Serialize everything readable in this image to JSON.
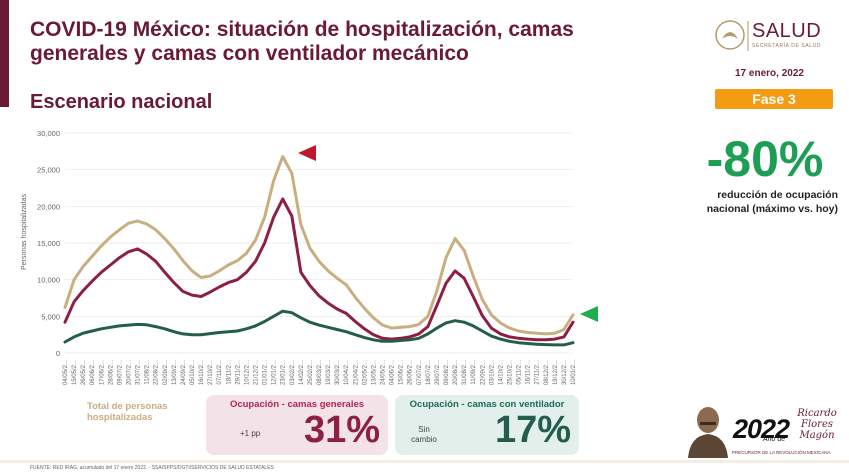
{
  "header": {
    "title": "COVID-19 México: situación de hospitalización, camas generales y camas con ventilador mecánico",
    "subtitle": "Escenario nacional"
  },
  "brand": {
    "logo_text": "SALUD",
    "logo_subtext": "SECRETARÍA DE SALUD",
    "date": "17 enero, 2022",
    "phase": "Fase 3",
    "accent_color": "#6a1a33",
    "phase_color": "#f39c12"
  },
  "kpi": {
    "value": "-80%",
    "description": "reducción de ocupación nacional (máximo vs. hoy)",
    "color": "#1e9e55"
  },
  "cards": {
    "total": {
      "label": "Total de personas hospitalizadas",
      "color": "#c9ae80"
    },
    "generales": {
      "label": "Ocupación - camas generales",
      "change": "+1 pp",
      "value": "31%",
      "color": "#8d1f45"
    },
    "ventilador": {
      "label": "Ocupación - camas con ventilador",
      "change": "Sin cambio",
      "value": "17%",
      "color": "#235d4d"
    }
  },
  "year_badge": {
    "year": "2022",
    "year_sub": "Año de",
    "signature": "Ricardo Flores Magón",
    "tagline": "PRECURSOR DE LA REVOLUCIÓN MEXICANA"
  },
  "footer": "FUENTE: RED IRAG, acumulado del 17 enero 2022. - SSA/SPPS/DGTI/SERVICIOS DE SALUD ESTATALES",
  "chart_data": {
    "type": "line",
    "ylabel": "Personas hospitalizadas",
    "ylim": [
      0,
      30000
    ],
    "yticks": [
      "0",
      "5,000",
      "10,000",
      "15,000",
      "20,000",
      "25,000",
      "30,000"
    ],
    "x_tick_labels": [
      "04/05/2…",
      "15/05/2…",
      "26/05/2…",
      "06/06/2…",
      "17/06/2…",
      "28/06/2…",
      "09/07/2…",
      "20/07/2…",
      "31/07/2…",
      "11/08/2…",
      "22/08/2…",
      "02/09/2…",
      "13/09/2…",
      "24/09/2…",
      "05/10/2…",
      "16/10/2…",
      "27/10/2…",
      "07/11/2…",
      "18/11/2…",
      "29/11/2…",
      "10/12/2…",
      "21/12/2…",
      "01/01/2…",
      "12/01/2…",
      "23/01/2…",
      "03/02/2…",
      "14/02/2…",
      "25/02/2…",
      "08/03/2…",
      "19/03/2…",
      "30/03/2…",
      "10/04/2…",
      "21/04/2…",
      "02/05/2…",
      "13/05/2…",
      "24/05/2…",
      "04/06/2…",
      "15/06/2…",
      "26/06/2…",
      "07/07/2…",
      "18/07/2…",
      "29/07/2…",
      "09/08/2…",
      "20/08/2…",
      "31/08/2…",
      "11/09/2…",
      "22/09/2…",
      "03/10/2…",
      "14/10/2…",
      "25/10/2…",
      "05/11/2…",
      "16/11/2…",
      "27/11/2…",
      "08/12/2…",
      "19/12/2…",
      "30/12/2…",
      "10/01/2…"
    ],
    "x": [
      0,
      1,
      2,
      3,
      4,
      5,
      6,
      7,
      8,
      9,
      10,
      11,
      12,
      13,
      14,
      15,
      16,
      17,
      18,
      19,
      20,
      21,
      22,
      23,
      24,
      25,
      26,
      27,
      28,
      29,
      30,
      31,
      32,
      33,
      34,
      35,
      36,
      37,
      38,
      39,
      40,
      41,
      42,
      43,
      44,
      45,
      46,
      47,
      48,
      49,
      50,
      51,
      52,
      53,
      54,
      55,
      56
    ],
    "series": [
      {
        "name": "Total de personas hospitalizadas",
        "color": "#c9ae80",
        "values": [
          6200,
          10000,
          11800,
          13200,
          14600,
          15800,
          16800,
          17700,
          18000,
          17600,
          16800,
          15600,
          14200,
          12600,
          11200,
          10300,
          10500,
          11200,
          12000,
          12600,
          13600,
          15400,
          18500,
          23500,
          26800,
          24500,
          17500,
          14300,
          12500,
          11200,
          10200,
          9300,
          7600,
          6100,
          4800,
          3800,
          3400,
          3500,
          3600,
          3900,
          5000,
          8500,
          13000,
          15600,
          14000,
          10500,
          7300,
          5200,
          4100,
          3400,
          3000,
          2800,
          2700,
          2600,
          2700,
          3200,
          5200
        ]
      },
      {
        "name": "Camas generales",
        "color": "#8d1f45",
        "values": [
          4200,
          7000,
          8500,
          9800,
          11000,
          12000,
          13000,
          13800,
          14200,
          13500,
          12500,
          11000,
          9600,
          8400,
          7900,
          7700,
          8300,
          9000,
          9600,
          10000,
          11000,
          12500,
          15000,
          18500,
          21000,
          18700,
          11000,
          9200,
          7800,
          6800,
          6000,
          5400,
          4300,
          3300,
          2500,
          2000,
          1900,
          2000,
          2200,
          2600,
          3600,
          6500,
          9500,
          11200,
          10200,
          7700,
          5100,
          3400,
          2600,
          2200,
          2000,
          1900,
          1800,
          1800,
          1900,
          2200,
          4200
        ]
      },
      {
        "name": "Camas con ventilador",
        "color": "#235d4d",
        "values": [
          1500,
          2200,
          2700,
          3000,
          3300,
          3500,
          3700,
          3800,
          3900,
          3850,
          3600,
          3300,
          2900,
          2600,
          2500,
          2500,
          2650,
          2800,
          2900,
          3000,
          3300,
          3700,
          4300,
          5000,
          5700,
          5500,
          4800,
          4200,
          3800,
          3500,
          3200,
          2900,
          2500,
          2100,
          1800,
          1600,
          1600,
          1700,
          1800,
          2000,
          2600,
          3400,
          4100,
          4400,
          4200,
          3700,
          3000,
          2300,
          1900,
          1600,
          1400,
          1300,
          1200,
          1150,
          1100,
          1100,
          1400
        ]
      }
    ]
  }
}
